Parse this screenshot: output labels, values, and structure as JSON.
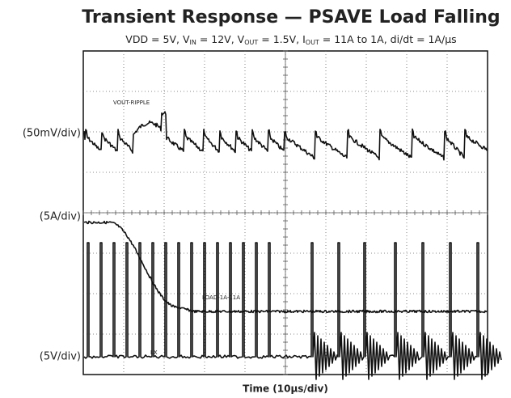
{
  "title": "Transient Response — PSAVE Load Falling",
  "subtitle": [
    {
      "text": "VDD = 5V, V"
    },
    {
      "text": "IN",
      "sub": true
    },
    {
      "text": " = 12V, V"
    },
    {
      "text": "OUT",
      "sub": true
    },
    {
      "text": " = 1.5V, I"
    },
    {
      "text": "OUT",
      "sub": true
    },
    {
      "text": " = 11A to 1A, di/dt = 1A/µs"
    }
  ],
  "channels": [
    {
      "scale": "(50mV/div)",
      "trace": "VOUT-RIPPLE"
    },
    {
      "scale": "(5A/div)",
      "trace": "LOAD-1A-11A"
    },
    {
      "scale": "(5V/div)",
      "trace": "LX"
    }
  ],
  "x_label": "Time (10µs/div)"
}
